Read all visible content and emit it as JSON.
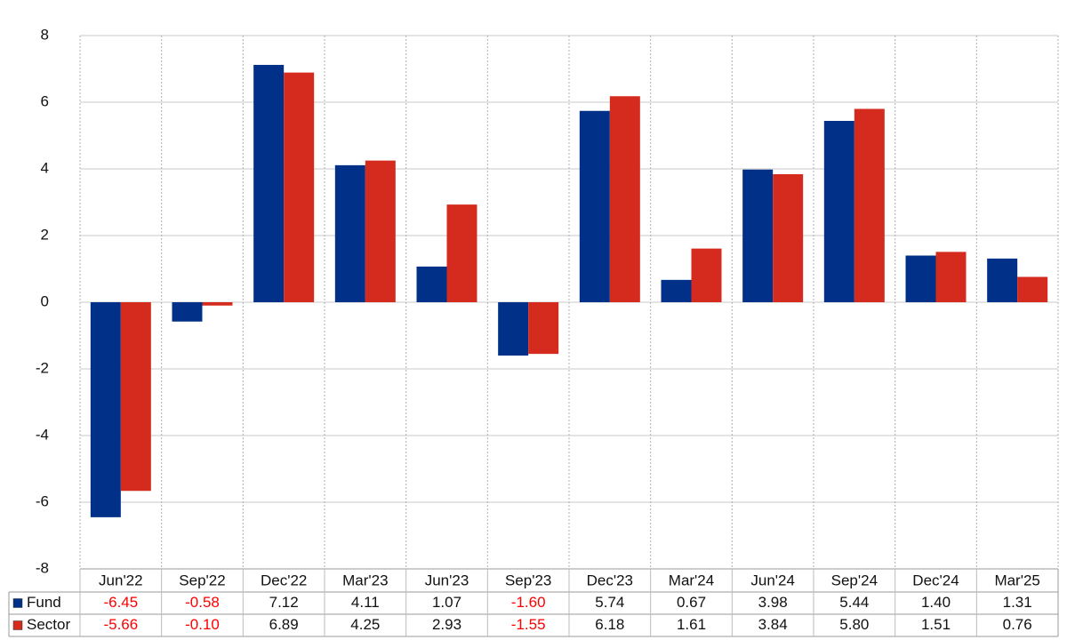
{
  "chart_data": {
    "type": "bar",
    "categories": [
      "Jun'22",
      "Sep'22",
      "Dec'22",
      "Mar'23",
      "Jun'23",
      "Sep'23",
      "Dec'23",
      "Mar'24",
      "Jun'24",
      "Sep'24",
      "Dec'24",
      "Mar'25"
    ],
    "series": [
      {
        "name": "Fund",
        "color": "#003087",
        "values": [
          -6.45,
          -0.58,
          7.12,
          4.11,
          1.07,
          -1.6,
          5.74,
          0.67,
          3.98,
          5.44,
          1.4,
          1.31
        ],
        "value_labels": [
          "-6.45",
          "-0.58",
          "7.12",
          "4.11",
          "1.07",
          "-1.60",
          "5.74",
          "0.67",
          "3.98",
          "5.44",
          "1.40",
          "1.31"
        ]
      },
      {
        "name": "Sector",
        "color": "#d52b1e",
        "values": [
          -5.66,
          -0.1,
          6.89,
          4.25,
          2.93,
          -1.55,
          6.18,
          1.61,
          3.84,
          5.8,
          1.51,
          0.76
        ],
        "value_labels": [
          "-5.66",
          "-0.10",
          "6.89",
          "4.25",
          "2.93",
          "-1.55",
          "6.18",
          "1.61",
          "3.84",
          "5.80",
          "1.51",
          "0.76"
        ]
      }
    ],
    "ylim": [
      -8,
      8
    ],
    "yticks": [
      -8,
      -6,
      -4,
      -2,
      0,
      2,
      4,
      6,
      8
    ],
    "grid": true,
    "negative_label_color": "#ff0000"
  }
}
